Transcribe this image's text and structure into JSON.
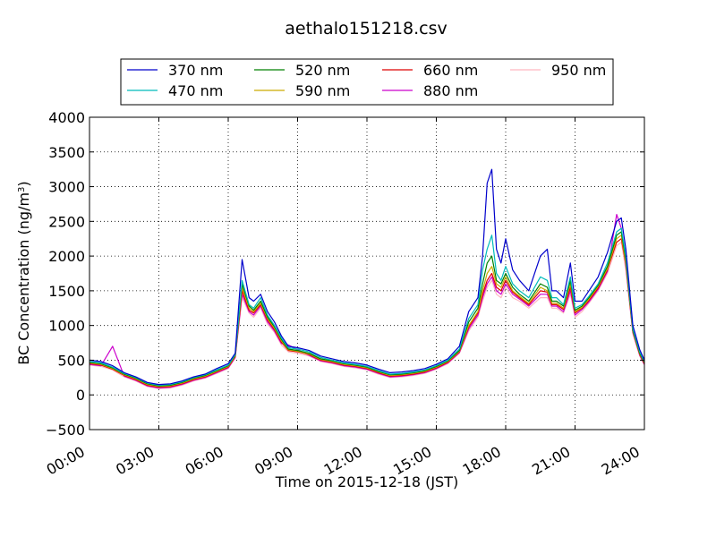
{
  "chart_data": {
    "type": "line",
    "title": "aethalo151218.csv",
    "xlabel": "Time on 2015-12-18 (JST)",
    "ylabel": "BC Concentration (ng/m",
    "ylabel_sup": "3",
    "ylabel_tail": ")",
    "xlim": [
      0,
      24
    ],
    "ylim": [
      -500,
      4000
    ],
    "x_ticks": [
      0,
      3,
      6,
      9,
      12,
      15,
      18,
      21,
      24
    ],
    "x_tick_labels": [
      "00:00",
      "03:00",
      "06:00",
      "09:00",
      "12:00",
      "15:00",
      "18:00",
      "21:00",
      "24:00"
    ],
    "y_ticks": [
      -500,
      0,
      500,
      1000,
      1500,
      2000,
      2500,
      3000,
      3500,
      4000
    ],
    "y_tick_labels": [
      "−500",
      "0",
      "500",
      "1000",
      "1500",
      "2000",
      "2500",
      "3000",
      "3500",
      "4000"
    ],
    "grid": true,
    "legend_position": "top-center",
    "x": [
      0,
      0.5,
      1.0,
      1.5,
      2.0,
      2.5,
      3.0,
      3.5,
      4.0,
      4.5,
      5.0,
      5.5,
      6.0,
      6.3,
      6.6,
      6.9,
      7.1,
      7.4,
      7.7,
      8.0,
      8.3,
      8.6,
      9.0,
      9.5,
      10.0,
      10.5,
      11.0,
      11.5,
      12.0,
      12.5,
      13.0,
      13.5,
      14.0,
      14.5,
      15.0,
      15.5,
      16.0,
      16.4,
      16.8,
      17.0,
      17.2,
      17.4,
      17.6,
      17.8,
      18.0,
      18.3,
      18.6,
      19.0,
      19.5,
      19.8,
      20.0,
      20.2,
      20.5,
      20.8,
      21.0,
      21.3,
      21.6,
      22.0,
      22.4,
      22.8,
      23.0,
      23.2,
      23.5,
      23.8,
      24.0
    ],
    "series": [
      {
        "name": "370 nm",
        "color": "#0000cc",
        "values": [
          500,
          480,
          420,
          320,
          260,
          180,
          150,
          160,
          200,
          260,
          300,
          380,
          450,
          600,
          1950,
          1400,
          1350,
          1450,
          1200,
          1050,
          850,
          700,
          680,
          640,
          560,
          520,
          480,
          460,
          430,
          370,
          320,
          330,
          350,
          380,
          440,
          520,
          700,
          1200,
          1400,
          2000,
          3050,
          3250,
          2100,
          1900,
          2250,
          1800,
          1650,
          1500,
          2000,
          2100,
          1500,
          1500,
          1400,
          1900,
          1350,
          1350,
          1500,
          1700,
          2050,
          2500,
          2550,
          2100,
          1000,
          650,
          500
        ]
      },
      {
        "name": "470 nm",
        "color": "#00bbbb",
        "values": [
          480,
          460,
          400,
          310,
          250,
          170,
          140,
          150,
          190,
          250,
          290,
          360,
          430,
          580,
          1650,
          1300,
          1250,
          1400,
          1150,
          1000,
          820,
          680,
          660,
          620,
          540,
          500,
          460,
          440,
          410,
          350,
          300,
          310,
          330,
          360,
          420,
          500,
          660,
          1100,
          1300,
          1800,
          2100,
          2300,
          1750,
          1650,
          1850,
          1600,
          1500,
          1400,
          1700,
          1650,
          1400,
          1400,
          1300,
          1700,
          1250,
          1300,
          1420,
          1600,
          1900,
          2350,
          2400,
          2000,
          950,
          620,
          480
        ]
      },
      {
        "name": "520 nm",
        "color": "#008000",
        "values": [
          470,
          450,
          390,
          300,
          240,
          160,
          130,
          140,
          180,
          240,
          280,
          350,
          420,
          570,
          1600,
          1280,
          1220,
          1350,
          1120,
          980,
          800,
          660,
          640,
          600,
          520,
          490,
          450,
          430,
          400,
          340,
          290,
          300,
          320,
          350,
          410,
          490,
          640,
          1050,
          1250,
          1600,
          1900,
          2000,
          1650,
          1600,
          1750,
          1550,
          1450,
          1350,
          1600,
          1550,
          1350,
          1350,
          1280,
          1650,
          1220,
          1280,
          1400,
          1580,
          1850,
          2300,
          2350,
          1950,
          930,
          600,
          470
        ]
      },
      {
        "name": "590 nm",
        "color": "#ccaa00",
        "values": [
          460,
          440,
          380,
          290,
          230,
          150,
          120,
          130,
          170,
          230,
          270,
          340,
          410,
          560,
          1550,
          1250,
          1200,
          1320,
          1100,
          960,
          780,
          650,
          630,
          590,
          510,
          480,
          440,
          420,
          390,
          330,
          280,
          290,
          310,
          340,
          400,
          480,
          630,
          1000,
          1200,
          1500,
          1750,
          1850,
          1600,
          1550,
          1700,
          1500,
          1420,
          1320,
          1550,
          1500,
          1320,
          1320,
          1250,
          1600,
          1200,
          1260,
          1380,
          1560,
          1820,
          2250,
          2300,
          1900,
          920,
          590,
          460
        ]
      },
      {
        "name": "660 nm",
        "color": "#dd0000",
        "values": [
          450,
          430,
          370,
          280,
          220,
          140,
          110,
          120,
          160,
          220,
          260,
          330,
          400,
          550,
          1500,
          1220,
          1180,
          1300,
          1080,
          940,
          760,
          640,
          620,
          580,
          500,
          470,
          430,
          410,
          380,
          320,
          270,
          280,
          300,
          330,
          390,
          470,
          620,
          980,
          1180,
          1450,
          1650,
          1750,
          1550,
          1500,
          1650,
          1480,
          1400,
          1300,
          1500,
          1480,
          1300,
          1300,
          1230,
          1550,
          1180,
          1250,
          1360,
          1540,
          1800,
          2200,
          2250,
          1880,
          910,
          580,
          450
        ]
      },
      {
        "name": "880 nm",
        "color": "#cc00cc",
        "values": [
          440,
          420,
          700,
          270,
          210,
          130,
          100,
          110,
          150,
          210,
          250,
          320,
          390,
          540,
          1450,
          1200,
          1150,
          1280,
          1050,
          920,
          740,
          720,
          650,
          570,
          490,
          460,
          420,
          400,
          370,
          310,
          260,
          270,
          290,
          320,
          380,
          460,
          610,
          950,
          1150,
          1400,
          1600,
          1700,
          1500,
          1450,
          1600,
          1450,
          1380,
          1280,
          1450,
          1450,
          1280,
          1280,
          1200,
          1500,
          1150,
          1230,
          1340,
          1520,
          1780,
          2600,
          2400,
          1850,
          900,
          570,
          440
        ]
      },
      {
        "name": "950 nm",
        "color": "#ffb6c1",
        "values": [
          430,
          410,
          360,
          260,
          200,
          120,
          90,
          100,
          140,
          200,
          240,
          310,
          380,
          530,
          1400,
          1180,
          1120,
          1250,
          1020,
          900,
          720,
          620,
          600,
          560,
          480,
          450,
          410,
          390,
          360,
          300,
          250,
          260,
          280,
          310,
          370,
          450,
          600,
          920,
          1120,
          1350,
          1550,
          1650,
          1450,
          1400,
          1550,
          1400,
          1350,
          1250,
          1400,
          1400,
          1250,
          1250,
          1180,
          1450,
          1120,
          1200,
          1320,
          1500,
          1750,
          2150,
          2200,
          1800,
          880,
          560,
          430
        ]
      }
    ]
  }
}
